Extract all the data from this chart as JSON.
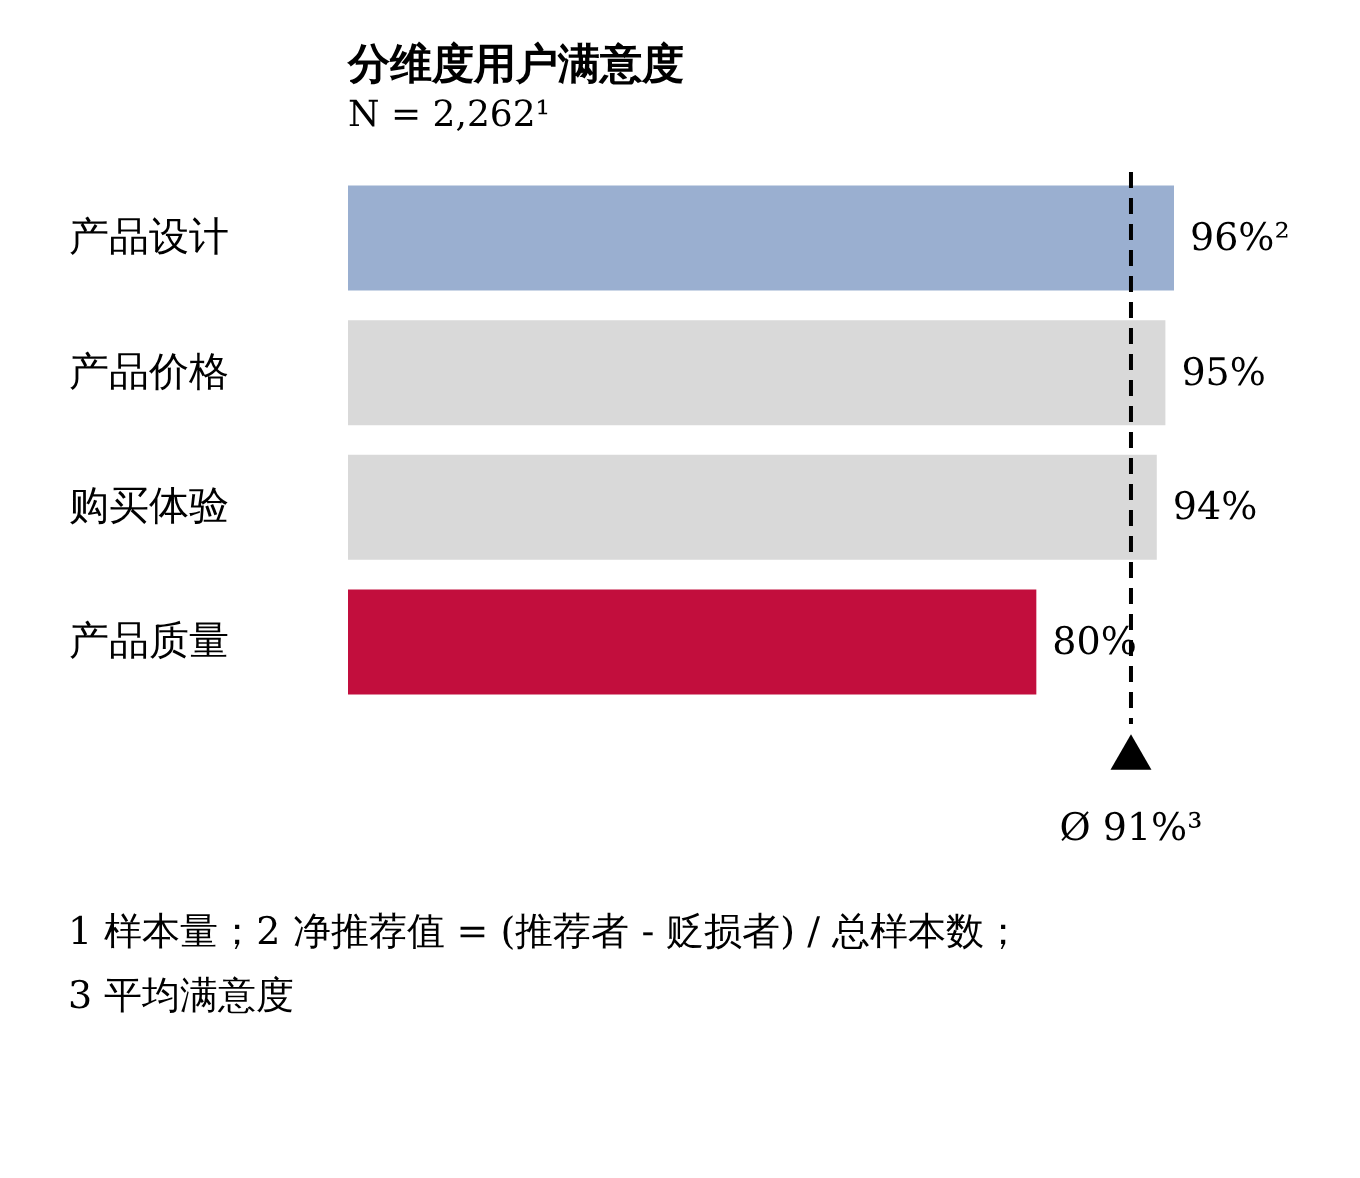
{
  "chart_data": {
    "type": "bar",
    "orientation": "horizontal",
    "title": "分维度用户满意度",
    "subtitle": "N = 2,262¹",
    "categories": [
      "产品设计",
      "产品价格",
      "购买体验",
      "产品质量"
    ],
    "values": [
      96,
      95,
      94,
      80
    ],
    "colors": [
      "#9aafd0",
      "#d9d9d9",
      "#d9d9d9",
      "#c20e3d"
    ],
    "value_labels": [
      "96%²",
      "95%",
      "94%",
      "80%"
    ],
    "ref_lines": [
      {
        "axis": "x",
        "value": 91,
        "label": "Ø 91%³",
        "color": "#000000",
        "line_style": "dashed"
      }
    ],
    "annotations": [
      "1 样本量；2 净推荐值 = (推荐者 - 贬损者) / 总样本数；",
      "3 平均满意度"
    ],
    "tick_labels": "y"
  }
}
